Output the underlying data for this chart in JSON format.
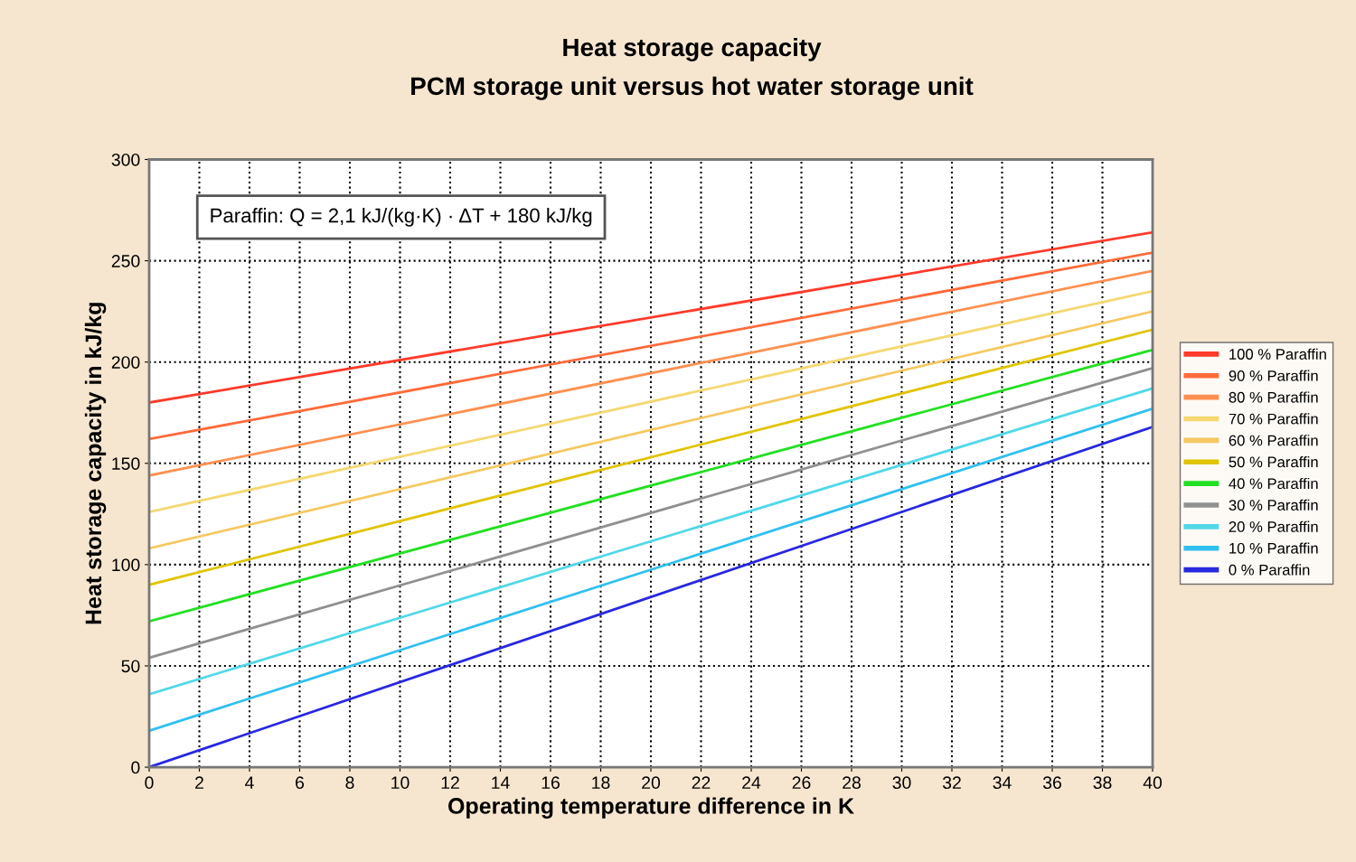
{
  "chart_data": {
    "type": "line",
    "title": "Heat storage capacity",
    "subtitle": "PCM storage unit versus hot water storage unit",
    "xlabel": "Operating temperature difference in K",
    "ylabel": "Heat storage capacity in kJ/kg",
    "x": [
      0,
      40
    ],
    "series": [
      {
        "name": "100 % Paraffin",
        "color": "#ff3a2a",
        "values": [
          180,
          264
        ]
      },
      {
        "name": "90 % Paraffin",
        "color": "#ff6a3a",
        "values": [
          162,
          254
        ]
      },
      {
        "name": "80 % Paraffin",
        "color": "#ff9050",
        "values": [
          144,
          245
        ]
      },
      {
        "name": "70 % Paraffin",
        "color": "#f5d870",
        "values": [
          126,
          235
        ]
      },
      {
        "name": "60 % Paraffin",
        "color": "#f5c860",
        "values": [
          108,
          225
        ]
      },
      {
        "name": "50 % Paraffin",
        "color": "#e0c400",
        "values": [
          90,
          216
        ]
      },
      {
        "name": "40 % Paraffin",
        "color": "#22e022",
        "values": [
          72,
          206
        ]
      },
      {
        "name": "30 % Paraffin",
        "color": "#909090",
        "values": [
          54,
          197
        ]
      },
      {
        "name": "20 % Paraffin",
        "color": "#50d8e8",
        "values": [
          36,
          187
        ]
      },
      {
        "name": "10 % Paraffin",
        "color": "#30c0f0",
        "values": [
          18,
          177
        ]
      },
      {
        "name": "0 % Paraffin",
        "color": "#2828e0",
        "values": [
          0,
          168
        ]
      }
    ],
    "xlim": [
      0,
      40
    ],
    "xticks": [
      0,
      2,
      4,
      6,
      8,
      10,
      12,
      14,
      16,
      18,
      20,
      22,
      24,
      26,
      28,
      30,
      32,
      34,
      36,
      38,
      40
    ],
    "ylim": [
      0,
      300
    ],
    "yticks": [
      0,
      50,
      100,
      150,
      200,
      250,
      300
    ],
    "grid": true,
    "legend": "right",
    "marker": "none",
    "line_style": "solid",
    "annotations": [
      "Paraffin: Q = 2,1 kJ/(kg·K) · ΔT + 180 kJ/kg"
    ]
  }
}
